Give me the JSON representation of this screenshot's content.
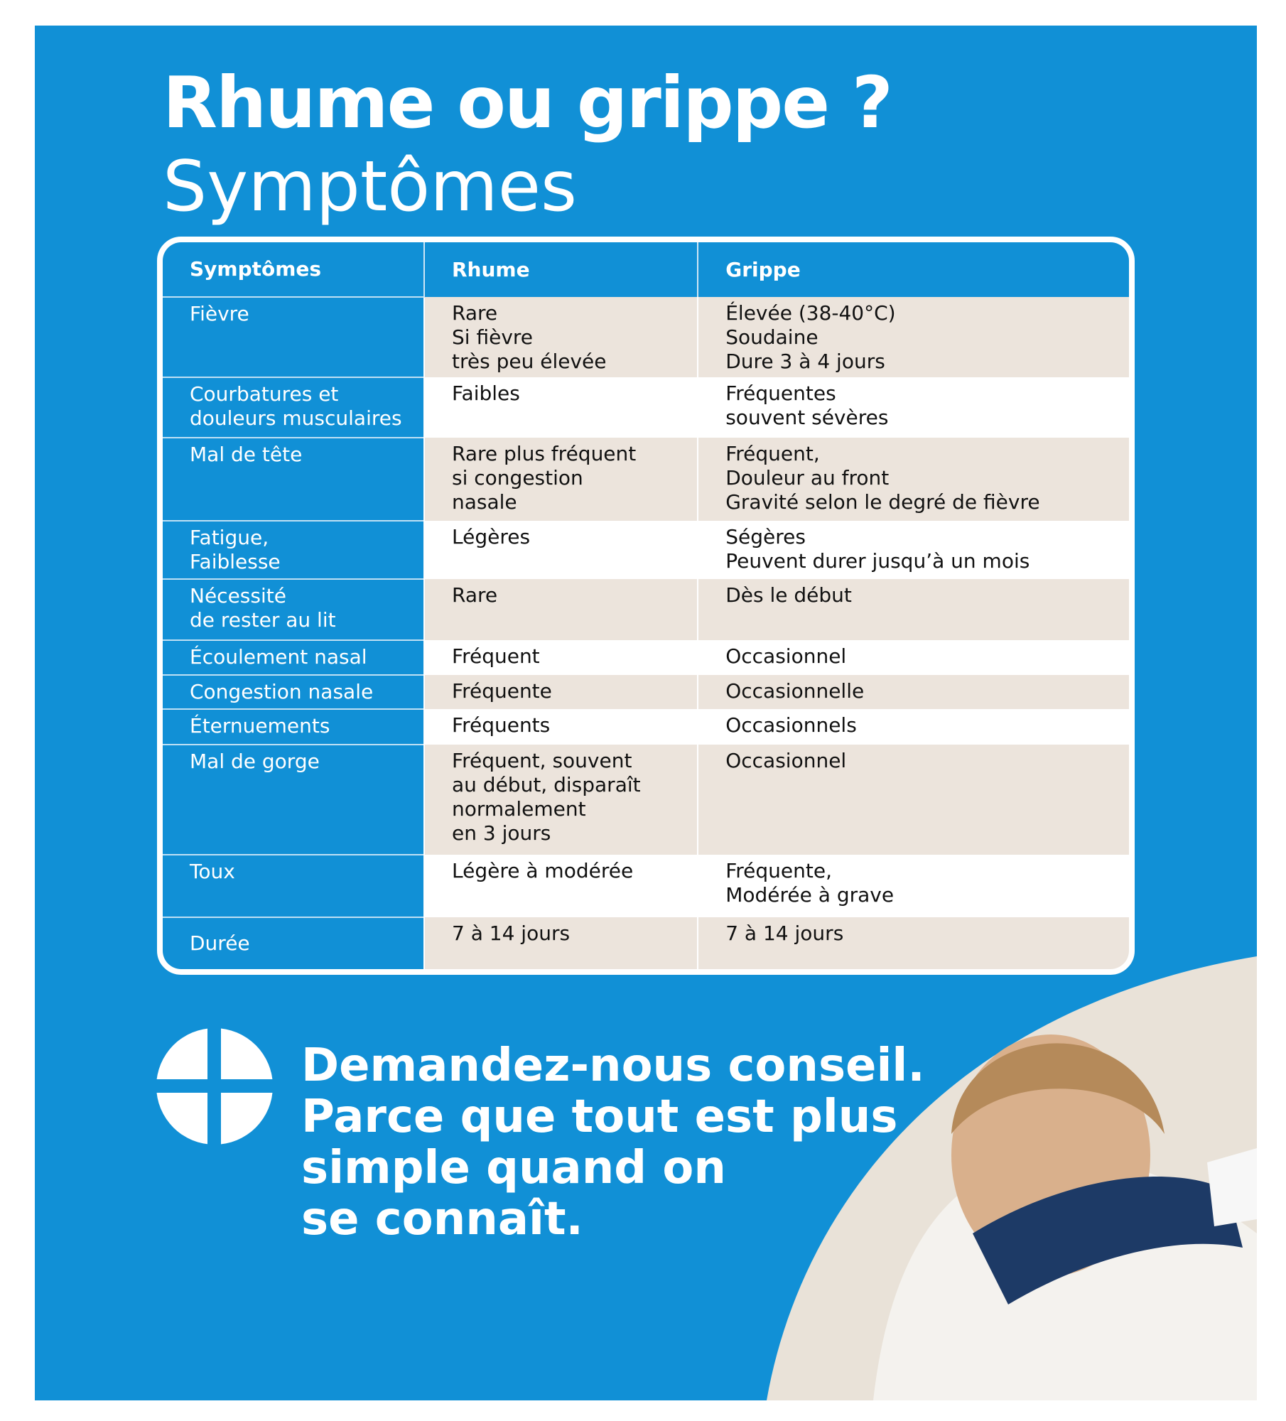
{
  "title": "Rhume ou grippe ?",
  "subtitle": "Symptômes",
  "table": {
    "headers": [
      "Symptômes",
      "Rhume",
      "Grippe"
    ],
    "rows": [
      {
        "symptom": "Fièvre",
        "rhume": "Rare\nSi fièvre\ntrès peu élevée",
        "grippe": "Élevée (38-40°C)\nSoudaine\nDure 3 à 4 jours"
      },
      {
        "symptom": "Courbatures et\ndouleurs musculaires",
        "rhume": "Faibles",
        "grippe": "Fréquentes\nsouvent sévères"
      },
      {
        "symptom": "Mal de tête",
        "rhume": "Rare plus fréquent\nsi congestion\nnasale",
        "grippe": "Fréquent,\nDouleur au front\nGravité selon le degré de fièvre"
      },
      {
        "symptom": "Fatigue,\nFaiblesse",
        "rhume": "Légères",
        "grippe": "Ségères\nPeuvent durer jusqu’à un mois"
      },
      {
        "symptom": "Nécessité\nde rester au lit",
        "rhume": "Rare",
        "grippe": "Dès le début"
      },
      {
        "symptom": "Écoulement nasal",
        "rhume": "Fréquent",
        "grippe": "Occasionnel"
      },
      {
        "symptom": "Congestion nasale",
        "rhume": "Fréquente",
        "grippe": "Occasionnelle"
      },
      {
        "symptom": "Éternuements",
        "rhume": "Fréquents",
        "grippe": "Occasionnels"
      },
      {
        "symptom": "Mal de gorge",
        "rhume": "Fréquent, souvent\nau début, disparaît\nnormalement\nen 3 jours",
        "grippe": "Occasionnel"
      },
      {
        "symptom": "Toux",
        "rhume": "Légère à modérée",
        "grippe": "Fréquente,\nModérée à grave"
      },
      {
        "symptom": "Durée",
        "rhume": "7 à 14 jours",
        "grippe": "7 à 14 jours"
      }
    ]
  },
  "tagline": [
    "Demandez-nous conseil.",
    "Parce que tout est plus",
    "simple quand on",
    "se connaît."
  ],
  "icons": {
    "logo": "pharmacy-cross-circle-logo"
  },
  "colors": {
    "brand_blue": "#1190d6",
    "beige": "#ece4dc",
    "white": "#ffffff"
  }
}
